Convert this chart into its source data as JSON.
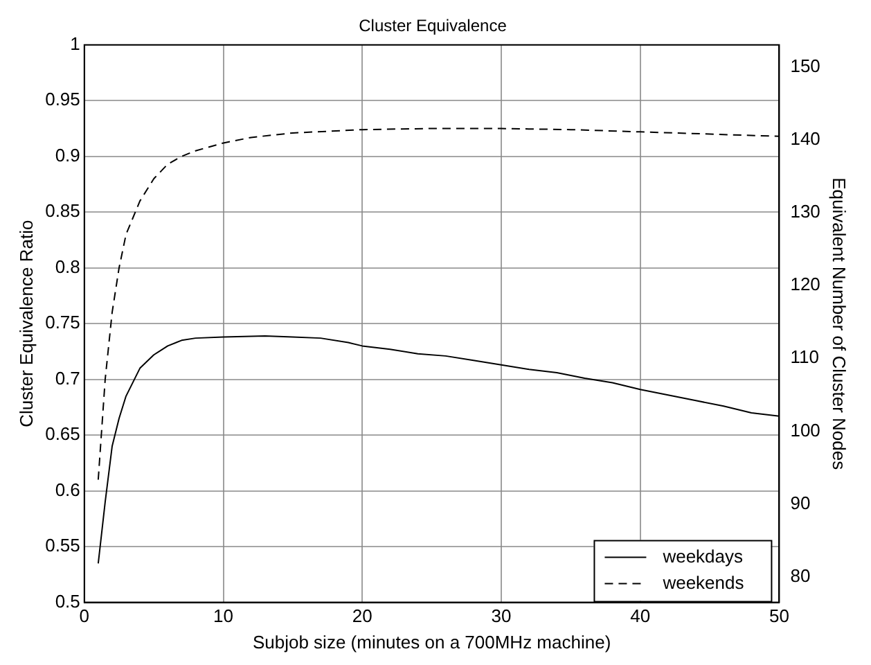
{
  "chart_data": {
    "type": "line",
    "title": "Cluster Equivalence",
    "xlabel": "Subjob size (minutes on a 700MHz machine)",
    "ylabel": "Cluster Equivalence Ratio",
    "y2label": "Equivalent Number of Cluster Nodes",
    "xlim": [
      0,
      50
    ],
    "xticks": [
      0,
      10,
      20,
      30,
      40,
      50
    ],
    "ylim": [
      0.5,
      1
    ],
    "yticks": [
      0.5,
      0.55,
      0.6,
      0.65,
      0.7,
      0.75,
      0.8,
      0.85,
      0.9,
      0.95,
      1
    ],
    "y2lim": [
      76.5,
      153
    ],
    "y2ticks": [
      80,
      90,
      100,
      110,
      120,
      130,
      140,
      150
    ],
    "grid": true,
    "legend": "bottom right",
    "marker": "none",
    "series": [
      {
        "name": "weekdays",
        "color": "#000000",
        "line_style": "solid",
        "x": [
          1,
          1.5,
          2,
          2.5,
          3,
          4,
          5,
          6,
          7,
          8,
          10,
          13,
          15,
          17,
          19,
          20,
          22,
          24,
          26,
          28,
          30,
          32,
          34,
          36,
          38,
          40,
          42,
          44,
          46,
          48,
          50
        ],
        "values": [
          0.535,
          0.59,
          0.64,
          0.665,
          0.685,
          0.71,
          0.722,
          0.73,
          0.735,
          0.737,
          0.738,
          0.739,
          0.738,
          0.737,
          0.733,
          0.73,
          0.727,
          0.723,
          0.721,
          0.717,
          0.713,
          0.709,
          0.706,
          0.701,
          0.697,
          0.691,
          0.686,
          0.681,
          0.676,
          0.67,
          0.667
        ]
      },
      {
        "name": "weekends",
        "color": "#000000",
        "line_style": "dashed",
        "x": [
          1,
          1.5,
          2,
          2.5,
          3,
          4,
          5,
          6,
          7,
          8,
          10,
          12,
          15,
          20,
          25,
          30,
          35,
          40,
          45,
          50
        ],
        "values": [
          0.61,
          0.7,
          0.76,
          0.8,
          0.83,
          0.86,
          0.88,
          0.893,
          0.9,
          0.905,
          0.912,
          0.917,
          0.921,
          0.924,
          0.925,
          0.925,
          0.924,
          0.922,
          0.92,
          0.918
        ]
      }
    ]
  }
}
